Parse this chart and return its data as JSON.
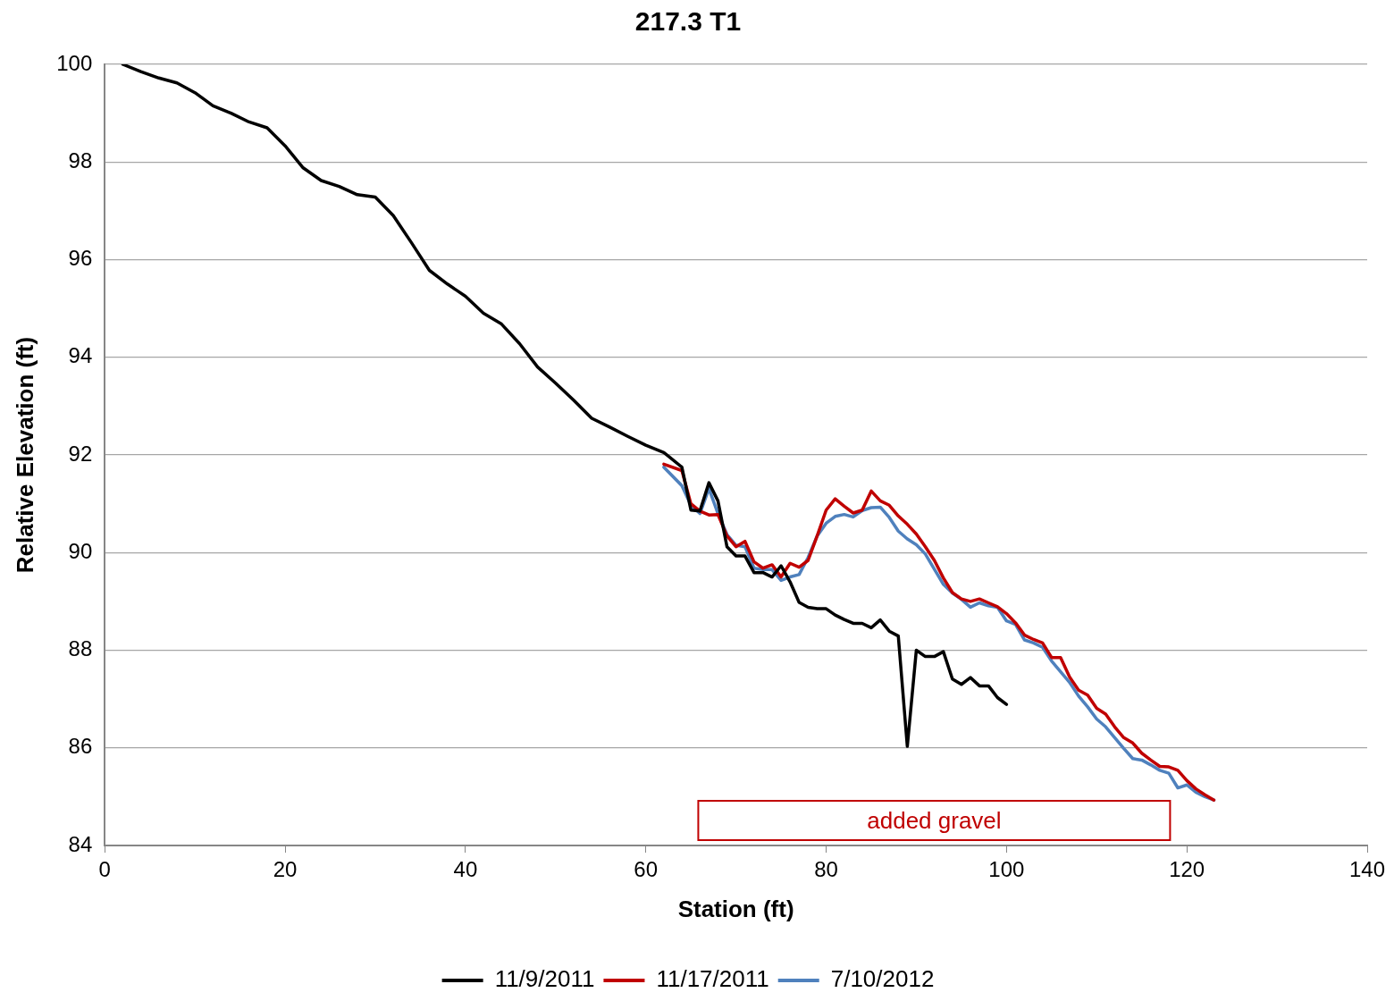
{
  "chart_data": {
    "type": "line",
    "title": "217.3 T1",
    "xlabel": "Station (ft)",
    "ylabel": "Relative Elevation (ft)",
    "xlim": [
      0,
      140
    ],
    "xticks": [
      0,
      20,
      40,
      60,
      80,
      100,
      120,
      140
    ],
    "ylim": [
      84,
      100
    ],
    "yticks": [
      84,
      86,
      88,
      90,
      92,
      94,
      96,
      98,
      100
    ],
    "grid": "y",
    "legend": "bottom",
    "marker": "none",
    "line_style": "solid",
    "annotations": [
      "added gravel"
    ],
    "series": [
      {
        "name": "11/9/2011",
        "color": "#000000",
        "x": [
          2,
          4,
          6,
          8,
          10,
          12,
          14,
          16,
          18,
          20,
          22,
          24,
          26,
          28,
          30,
          32,
          34,
          36,
          38,
          40,
          42,
          44,
          46,
          48,
          50,
          52,
          54,
          56,
          58,
          60,
          62,
          64,
          65,
          66,
          67,
          68,
          69,
          70,
          71,
          72,
          73,
          74,
          75,
          76,
          77,
          78,
          79,
          80,
          81,
          82,
          83,
          84,
          85,
          86,
          87,
          88,
          89,
          90,
          91,
          92,
          93,
          94,
          95,
          96,
          97,
          98,
          99,
          100
        ],
        "values": [
          100,
          99.85,
          99.72,
          99.62,
          99.42,
          99.15,
          99.0,
          98.82,
          98.7,
          98.33,
          97.88,
          97.62,
          97.5,
          97.33,
          97.28,
          96.9,
          96.35,
          95.78,
          95.5,
          95.25,
          94.9,
          94.68,
          94.28,
          93.8,
          93.47,
          93.12,
          92.75,
          92.57,
          92.38,
          92.2,
          92.05,
          91.75,
          90.87,
          90.85,
          91.43,
          91.06,
          90.12,
          89.93,
          89.93,
          89.59,
          89.59,
          89.5,
          89.73,
          89.4,
          88.98,
          88.88,
          88.85,
          88.85,
          88.72,
          88.63,
          88.55,
          88.55,
          88.46,
          88.62,
          88.39,
          88.29,
          86.03,
          88.0,
          87.87,
          87.87,
          87.97,
          87.41,
          87.3,
          87.44,
          87.27,
          87.27,
          87.03,
          86.89
        ]
      },
      {
        "name": "11/17/2011",
        "color": "#c00000",
        "x": [
          62,
          64,
          65,
          66,
          67,
          68,
          69,
          70,
          71,
          72,
          73,
          74,
          75,
          76,
          77,
          78,
          79,
          80,
          81,
          82,
          83,
          84,
          85,
          86,
          87,
          88,
          89,
          90,
          91,
          92,
          93,
          94,
          95,
          96,
          97,
          98,
          99,
          100,
          101,
          102,
          103,
          104,
          105,
          106,
          107,
          108,
          109,
          110,
          111,
          112,
          113,
          114,
          115,
          116,
          117,
          118,
          119,
          120,
          121,
          122,
          123
        ],
        "values": [
          91.81,
          91.68,
          91.0,
          90.85,
          90.77,
          90.78,
          90.34,
          90.12,
          90.23,
          89.81,
          89.68,
          89.75,
          89.5,
          89.78,
          89.7,
          89.84,
          90.34,
          90.87,
          91.1,
          90.95,
          90.81,
          90.87,
          91.26,
          91.06,
          90.97,
          90.75,
          90.58,
          90.38,
          90.12,
          89.84,
          89.48,
          89.18,
          89.05,
          89.0,
          89.05,
          88.97,
          88.89,
          88.75,
          88.56,
          88.31,
          88.22,
          88.15,
          87.85,
          87.85,
          87.45,
          87.18,
          87.08,
          86.81,
          86.69,
          86.43,
          86.21,
          86.1,
          85.89,
          85.75,
          85.62,
          85.61,
          85.54,
          85.33,
          85.16,
          85.04,
          84.93
        ]
      },
      {
        "name": "7/10/2012",
        "color": "#4f81bd",
        "x": [
          62,
          64,
          65,
          66,
          67,
          68,
          69,
          70,
          71,
          72,
          73,
          74,
          75,
          76,
          77,
          78,
          79,
          80,
          81,
          82,
          83,
          84,
          85,
          86,
          87,
          88,
          89,
          90,
          91,
          92,
          93,
          94,
          95,
          96,
          97,
          98,
          99,
          100,
          101,
          102,
          103,
          104,
          105,
          106,
          107,
          108,
          109,
          110,
          111,
          112,
          113,
          114,
          115,
          116,
          117,
          118,
          119,
          120,
          121,
          122,
          123
        ],
        "values": [
          91.75,
          91.37,
          90.97,
          90.8,
          91.31,
          90.8,
          90.37,
          90.15,
          90.12,
          89.68,
          89.65,
          89.65,
          89.43,
          89.5,
          89.55,
          89.9,
          90.34,
          90.6,
          90.74,
          90.78,
          90.73,
          90.86,
          90.92,
          90.93,
          90.72,
          90.44,
          90.28,
          90.16,
          89.97,
          89.66,
          89.35,
          89.17,
          89.04,
          88.88,
          88.97,
          88.91,
          88.88,
          88.6,
          88.53,
          88.21,
          88.15,
          88.06,
          87.78,
          87.56,
          87.34,
          87.06,
          86.84,
          86.59,
          86.43,
          86.21,
          85.99,
          85.78,
          85.75,
          85.65,
          85.54,
          85.48,
          85.18,
          85.24,
          85.09,
          85.0,
          84.93
        ]
      }
    ]
  }
}
